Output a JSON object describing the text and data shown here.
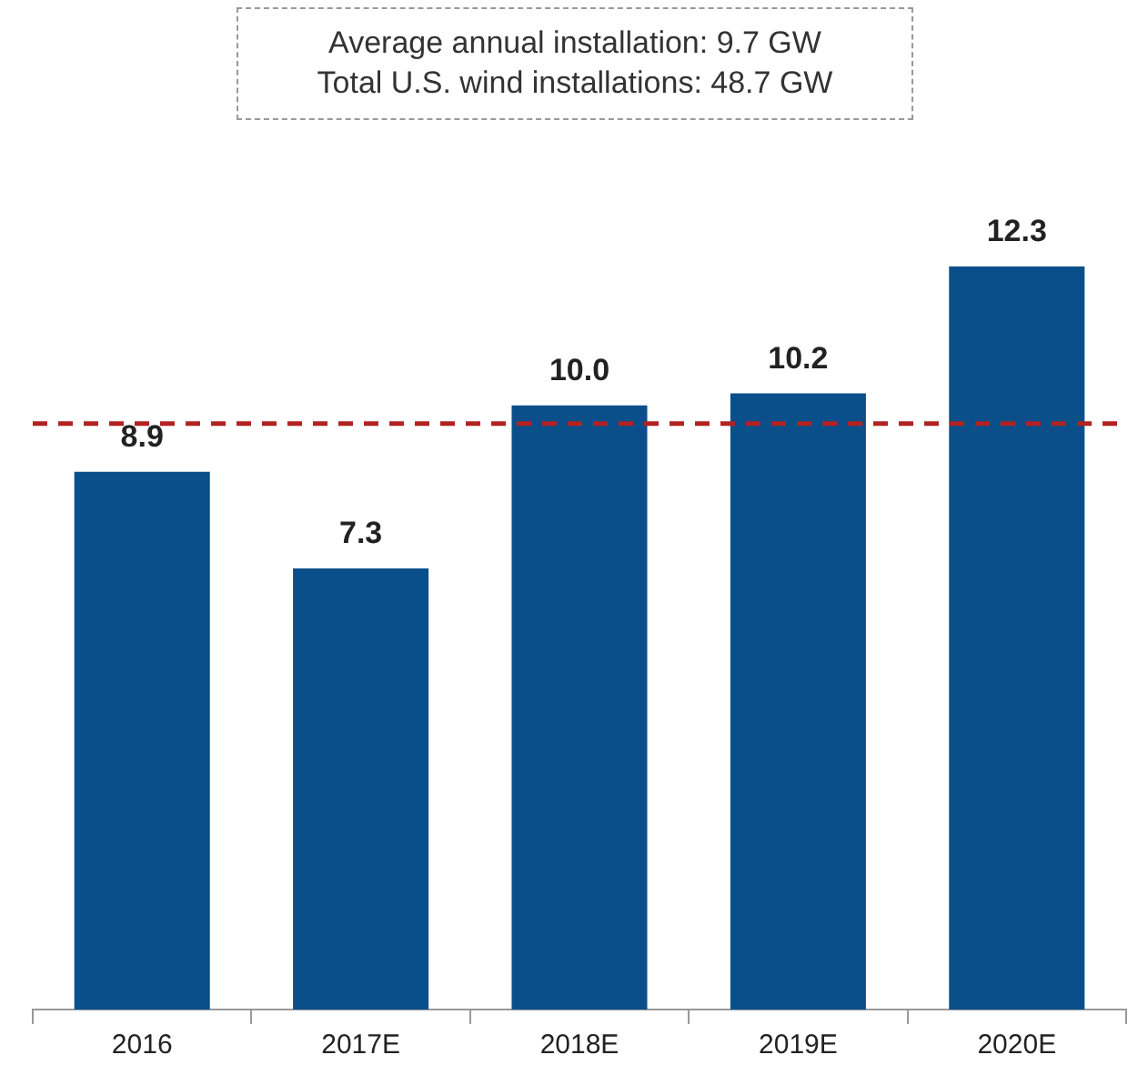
{
  "chart_data": {
    "type": "bar",
    "categories": [
      "2016",
      "2017E",
      "2018E",
      "2019E",
      "2020E"
    ],
    "values": [
      8.9,
      7.3,
      10.0,
      10.2,
      12.3
    ],
    "color": "#0b4f8a",
    "value_labels": [
      "8.9",
      "7.3",
      "10.0",
      "10.2",
      "12.3"
    ],
    "relative": false,
    "ref_lines": [
      {
        "axis": "y",
        "value": 9.7,
        "color": "#b22222",
        "line_style": "dashed"
      }
    ],
    "annotations": [
      "Average annual installation: 9.7 GW",
      "Total U.S. wind installations: 48.7 GW"
    ],
    "grid": false,
    "legend": false
  }
}
